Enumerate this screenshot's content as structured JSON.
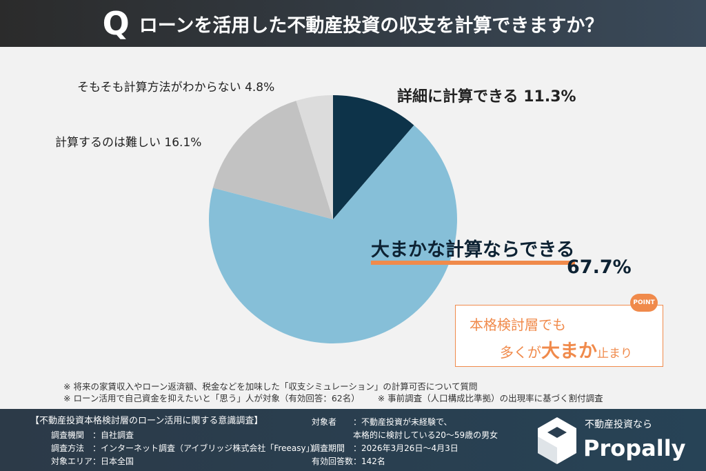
{
  "header": {
    "q": "Q",
    "title": "ローンを活用した不動産投資の収支を計算できますか？"
  },
  "chart_data": {
    "type": "pie",
    "title": "ローンを活用した不動産投資の収支を計算できますか？",
    "categories": [
      "詳細に計算できる",
      "大まかな計算ならできる",
      "計算するのは難しい",
      "そもそも計算方法がわからない"
    ],
    "values": [
      11.3,
      67.7,
      16.1,
      4.8
    ],
    "value_labels": [
      "11.3%",
      "67.7%",
      "16.1%",
      "4.8%"
    ],
    "colors": [
      "#0d3349",
      "#86bfd8",
      "#c2c2c2",
      "#dcdcdc"
    ]
  },
  "point": {
    "badge": "POINT",
    "line1": "本格検討層でも",
    "line2a": "多くが",
    "line2b": "大まか",
    "line2c": "止まり"
  },
  "notes": [
    "※ 将来の家賃収入やローン返済額、税金などを加味した「収支シミュレーション」の計算可否について質問",
    "※ ローン活用で自己資金を抑えたいと「思う」人が対象（有効回答：62名）",
    "※ 事前調査（人口構成比準拠）の出現率に基づく割付調査"
  ],
  "footer": {
    "survey_title": "【不動産投資本格検討層のローン活用に関する意識調査】",
    "rows": [
      "調査機関　：自社調査",
      "調査方法　：インターネット調査（アイブリッジ株式会社「Freeasy」）",
      "対象エリア：日本全国"
    ],
    "right_rows": [
      "対象者　　：不動産投資が未経験で、",
      "　　　　　本格的に検討している20～59歳の男女",
      "調査期間　：2026年3月26日～4月3日",
      "有効回答数：142名"
    ],
    "logo_tagline": "不動産投資なら",
    "logo_name": "Propally"
  }
}
